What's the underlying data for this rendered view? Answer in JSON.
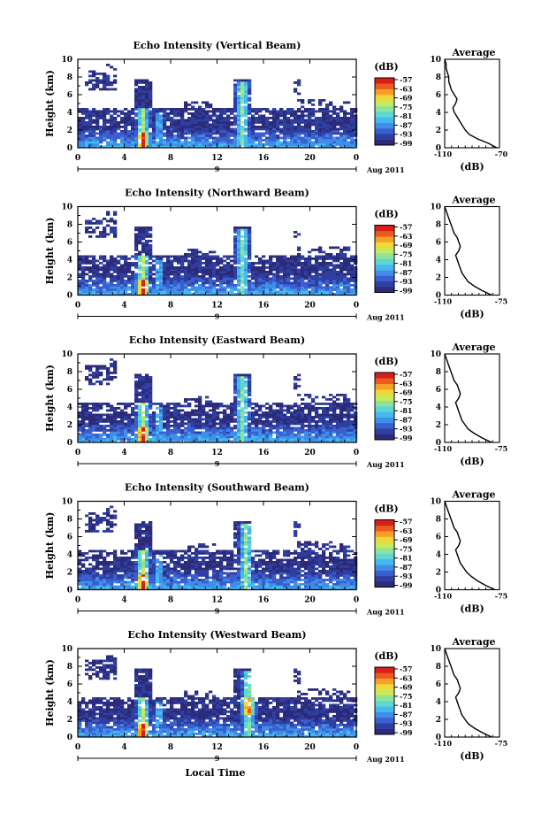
{
  "figure": {
    "xlabel": "Local Time",
    "date_label": "Aug 2011",
    "day_label": "9",
    "colorbar_unit": "(dB)",
    "colorbar_ticks": [
      "-57",
      "-63",
      "-69",
      "-75",
      "-81",
      "-87",
      "-93",
      "-99"
    ],
    "colorscale": [
      "#2b2b7a",
      "#2f3fa0",
      "#3a5fcf",
      "#3f8fe8",
      "#45b9f0",
      "#5fd6d0",
      "#8ee39a",
      "#c7ea5a",
      "#f0d83a",
      "#f6a02a",
      "#ec5a1e",
      "#d8201a"
    ],
    "profile_title": "Average",
    "profile_xlabel": "(dB)"
  },
  "chart_data": [
    {
      "type": "heatmap",
      "title": "Echo Intensity (Vertical Beam)",
      "ylabel": "Height (km)",
      "x_ticks": [
        "0",
        "4",
        "8",
        "12",
        "16",
        "20",
        "0"
      ],
      "y_ticks": [
        "0",
        "2",
        "4",
        "6",
        "8",
        "10"
      ],
      "xlim": [
        0,
        24
      ],
      "ylim": [
        0,
        10
      ],
      "colorbar_range": [
        -99,
        -57
      ],
      "profile": {
        "type": "line",
        "title": "Average",
        "xlabel": "(dB)",
        "x_ticks": [
          "-110",
          "-70"
        ],
        "xlim": [
          -110,
          -70
        ],
        "y_ticks": [
          "0",
          "2",
          "4",
          "6",
          "8",
          "10"
        ],
        "ylim": [
          0,
          10
        ],
        "height": [
          0,
          0.5,
          1,
          1.5,
          2,
          2.5,
          3,
          3.5,
          4,
          4.5,
          5,
          5.5,
          6,
          6.5,
          7,
          7.5,
          8,
          8.5,
          9,
          9.5,
          10
        ],
        "values": [
          -72,
          -78,
          -86,
          -92,
          -95,
          -97,
          -99,
          -101,
          -103,
          -104,
          -102,
          -101,
          -103,
          -105,
          -106,
          -107,
          -107,
          -108,
          -109,
          -109,
          -110
        ]
      }
    },
    {
      "type": "heatmap",
      "title": "Echo Intensity (Northward Beam)",
      "ylabel": "Height (km)",
      "x_ticks": [
        "0",
        "4",
        "8",
        "12",
        "16",
        "20",
        "0"
      ],
      "y_ticks": [
        "0",
        "2",
        "4",
        "6",
        "8",
        "10"
      ],
      "xlim": [
        0,
        24
      ],
      "ylim": [
        0,
        10
      ],
      "colorbar_range": [
        -99,
        -57
      ],
      "profile": {
        "type": "line",
        "title": "Average",
        "xlabel": "(dB)",
        "x_ticks": [
          "-110",
          "-75"
        ],
        "xlim": [
          -110,
          -75
        ],
        "y_ticks": [
          "0",
          "2",
          "4",
          "6",
          "8",
          "10"
        ],
        "ylim": [
          0,
          10
        ],
        "height": [
          0,
          0.5,
          1,
          1.5,
          2,
          2.5,
          3,
          3.5,
          4,
          4.5,
          5,
          5.5,
          6,
          6.5,
          7,
          7.5,
          8,
          8.5,
          9,
          9.5,
          10
        ],
        "values": [
          -80,
          -86,
          -91,
          -95,
          -97,
          -99,
          -100,
          -101,
          -102,
          -103,
          -101,
          -100,
          -101,
          -102,
          -104,
          -105,
          -106,
          -107,
          -108,
          -109,
          -110
        ]
      }
    },
    {
      "type": "heatmap",
      "title": "Echo Intensity (Eastward Beam)",
      "ylabel": "Height (km)",
      "x_ticks": [
        "0",
        "4",
        "8",
        "12",
        "16",
        "20",
        "0"
      ],
      "y_ticks": [
        "0",
        "2",
        "4",
        "6",
        "8",
        "10"
      ],
      "xlim": [
        0,
        24
      ],
      "ylim": [
        0,
        10
      ],
      "colorbar_range": [
        -99,
        -57
      ],
      "profile": {
        "type": "line",
        "title": "Average",
        "xlabel": "(dB)",
        "x_ticks": [
          "-110",
          "-75"
        ],
        "xlim": [
          -110,
          -75
        ],
        "y_ticks": [
          "0",
          "2",
          "4",
          "6",
          "8",
          "10"
        ],
        "ylim": [
          0,
          10
        ],
        "height": [
          0,
          0.5,
          1,
          1.5,
          2,
          2.5,
          3,
          3.5,
          4,
          4.5,
          5,
          5.5,
          6,
          6.5,
          7,
          7.5,
          8,
          8.5,
          9,
          9.5,
          10
        ],
        "values": [
          -80,
          -86,
          -91,
          -95,
          -97,
          -99,
          -100,
          -101,
          -102,
          -103,
          -101,
          -100,
          -101,
          -102,
          -104,
          -105,
          -106,
          -107,
          -108,
          -109,
          -110
        ]
      }
    },
    {
      "type": "heatmap",
      "title": "Echo Intensity (Southward Beam)",
      "ylabel": "Height (km)",
      "x_ticks": [
        "0",
        "4",
        "8",
        "12",
        "16",
        "20",
        "0"
      ],
      "y_ticks": [
        "0",
        "2",
        "4",
        "6",
        "8",
        "10"
      ],
      "xlim": [
        0,
        24
      ],
      "ylim": [
        0,
        10
      ],
      "colorbar_range": [
        -99,
        -57
      ],
      "profile": {
        "type": "line",
        "title": "Average",
        "xlabel": "(dB)",
        "x_ticks": [
          "-110",
          "-75"
        ],
        "xlim": [
          -110,
          -75
        ],
        "y_ticks": [
          "0",
          "2",
          "4",
          "6",
          "8",
          "10"
        ],
        "ylim": [
          0,
          10
        ],
        "height": [
          0,
          0.5,
          1,
          1.5,
          2,
          2.5,
          3,
          3.5,
          4,
          4.5,
          5,
          5.5,
          6,
          6.5,
          7,
          7.5,
          8,
          8.5,
          9,
          9.5,
          10
        ],
        "values": [
          -78,
          -84,
          -89,
          -93,
          -96,
          -98,
          -100,
          -101,
          -102,
          -103,
          -101,
          -100,
          -101,
          -102,
          -104,
          -105,
          -106,
          -107,
          -108,
          -109,
          -110
        ]
      }
    },
    {
      "type": "heatmap",
      "title": "Echo Intensity (Westward Beam)",
      "ylabel": "Height (km)",
      "x_ticks": [
        "0",
        "4",
        "8",
        "12",
        "16",
        "20",
        "0"
      ],
      "y_ticks": [
        "0",
        "2",
        "4",
        "6",
        "8",
        "10"
      ],
      "xlim": [
        0,
        24
      ],
      "ylim": [
        0,
        10
      ],
      "colorbar_range": [
        -99,
        -57
      ],
      "profile": {
        "type": "line",
        "title": "Average",
        "xlabel": "(dB)",
        "x_ticks": [
          "-110",
          "-75"
        ],
        "xlim": [
          -110,
          -75
        ],
        "y_ticks": [
          "0",
          "2",
          "4",
          "6",
          "8",
          "10"
        ],
        "ylim": [
          0,
          10
        ],
        "height": [
          0,
          0.5,
          1,
          1.5,
          2,
          2.5,
          3,
          3.5,
          4,
          4.5,
          5,
          5.5,
          6,
          6.5,
          7,
          7.5,
          8,
          8.5,
          9,
          9.5,
          10
        ],
        "values": [
          -80,
          -86,
          -91,
          -95,
          -97,
          -99,
          -100,
          -101,
          -102,
          -103,
          -101,
          -100,
          -101,
          -102,
          -104,
          -105,
          -106,
          -107,
          -108,
          -109,
          -110
        ]
      }
    }
  ]
}
